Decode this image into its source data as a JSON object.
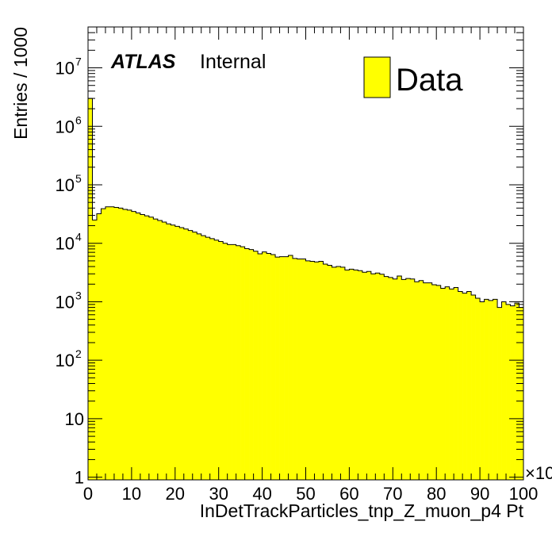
{
  "chart_data": {
    "type": "bar",
    "style": "filled step histogram",
    "fill_color": "#ffff00",
    "edge_color": "#000000",
    "xlabel": "InDetTrackParticles_tnp_Z_muon_p4 Pt",
    "ylabel": "Entries / 1000",
    "x_multiplier_label": "×10",
    "yscale": "log",
    "xlim": [
      0,
      100
    ],
    "ylim": [
      0.9,
      50000000
    ],
    "x_ticks": [
      0,
      10,
      20,
      30,
      40,
      50,
      60,
      70,
      80,
      90,
      100
    ],
    "y_ticks": [
      {
        "value": 1,
        "base": "1",
        "exp": ""
      },
      {
        "value": 10,
        "base": "10",
        "exp": ""
      },
      {
        "value": 100,
        "base": "10",
        "exp": "2"
      },
      {
        "value": 1000,
        "base": "10",
        "exp": "3"
      },
      {
        "value": 10000,
        "base": "10",
        "exp": "4"
      },
      {
        "value": 100000,
        "base": "10",
        "exp": "5"
      },
      {
        "value": 1000000,
        "base": "10",
        "exp": "6"
      },
      {
        "value": 10000000,
        "base": "10",
        "exp": "7"
      }
    ],
    "bin_width": 1,
    "legend": {
      "position": "top-right",
      "entries": [
        {
          "name": "Data",
          "color": "#ffff00"
        }
      ]
    },
    "atlas_label": {
      "bold": "ATLAS",
      "text": "Internal"
    },
    "series": [
      {
        "name": "Data",
        "x_start": 0,
        "values": [
          3000000,
          25000,
          32000,
          39000,
          42000,
          42000,
          41000,
          40000,
          38000,
          37000,
          35000,
          33000,
          31000,
          29500,
          28000,
          26000,
          24500,
          23000,
          21500,
          20500,
          19500,
          18500,
          17500,
          16500,
          15500,
          14500,
          13500,
          12700,
          12000,
          11300,
          10700,
          10000,
          9500,
          9500,
          9100,
          8700,
          8100,
          7800,
          7300,
          6600,
          7100,
          6700,
          6400,
          5800,
          5900,
          5900,
          6200,
          5500,
          5400,
          5400,
          5000,
          4900,
          4800,
          4900,
          4400,
          4200,
          3900,
          4000,
          3900,
          3500,
          3600,
          3500,
          3400,
          3200,
          3300,
          3000,
          3100,
          2950,
          2700,
          2600,
          2450,
          2750,
          2400,
          2500,
          2450,
          2200,
          2300,
          2100,
          2100,
          1950,
          1900,
          1700,
          1800,
          1650,
          1750,
          1500,
          1400,
          1500,
          1300,
          1150,
          1000,
          1100,
          1050,
          1100,
          800,
          1000,
          900,
          850,
          950,
          800
        ]
      }
    ]
  }
}
